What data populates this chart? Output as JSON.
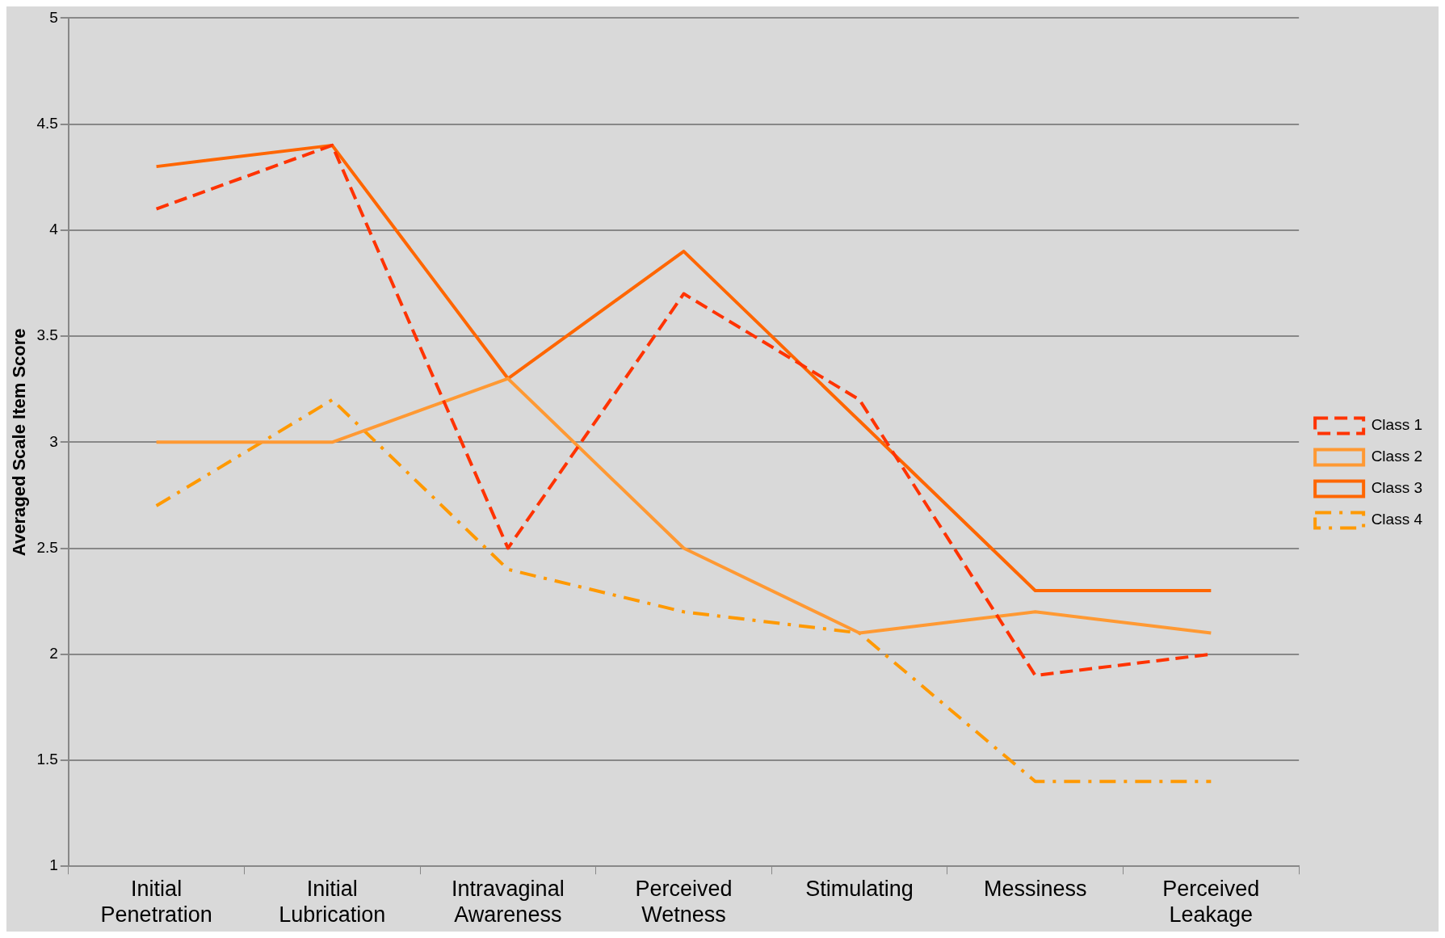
{
  "chart_data": {
    "type": "line",
    "ylabel": "Averaged Scale Item Score",
    "categories": [
      "Initial Penetration",
      "Initial Lubrication",
      "Intravaginal Awareness",
      "Perceived Wetness",
      "Stimulating",
      "Messiness",
      "Perceived Leakage"
    ],
    "series": [
      {
        "name": "Class 1",
        "color": "#ff3300",
        "line_style": "dashed",
        "values": [
          4.1,
          4.4,
          2.5,
          3.7,
          3.2,
          1.9,
          2.0
        ]
      },
      {
        "name": "Class 2",
        "color": "#ff9933",
        "line_style": "solid",
        "values": [
          3.0,
          3.0,
          3.3,
          2.5,
          2.1,
          2.2,
          2.1
        ]
      },
      {
        "name": "Class 3",
        "color": "#ff6600",
        "line_style": "solid",
        "values": [
          4.3,
          4.4,
          3.3,
          3.9,
          3.1,
          2.3,
          2.3
        ]
      },
      {
        "name": "Class 4",
        "color": "#ff9900",
        "line_style": "dashdot",
        "values": [
          2.7,
          3.2,
          2.4,
          2.2,
          2.1,
          1.4,
          1.4
        ]
      }
    ],
    "ylim": [
      1,
      5
    ],
    "yticks": [
      1,
      1.5,
      2,
      2.5,
      3,
      3.5,
      4,
      4.5,
      5
    ],
    "grid": "y",
    "legend": "right",
    "marker": "none"
  }
}
